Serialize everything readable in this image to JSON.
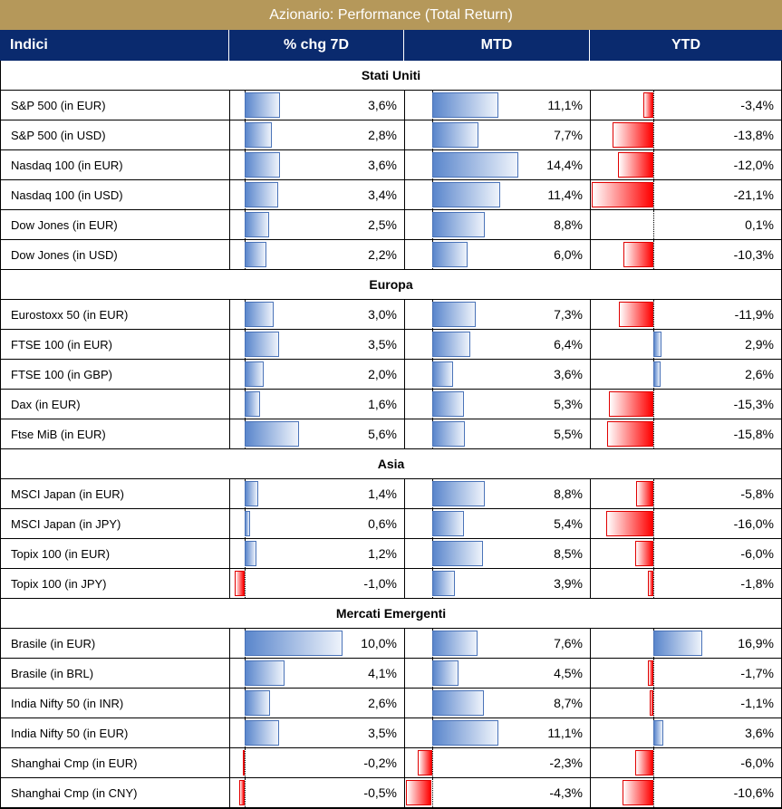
{
  "title": "Azionario: Performance (Total Return)",
  "headers": {
    "name": "Indici",
    "chg7d": "% chg 7D",
    "mtd": "MTD",
    "ytd": "YTD"
  },
  "colors": {
    "title_bg": "#b5985a",
    "header_bg": "#0a2a6e",
    "positive_bar": "#5a86cc",
    "negative_bar": "#ff0000"
  },
  "scales": {
    "chg7d": {
      "min": -1.0,
      "max": 10.0
    },
    "mtd": {
      "min": -4.3,
      "max": 14.4
    },
    "ytd": {
      "min": -21.1,
      "max": 16.9
    }
  },
  "sections": [
    {
      "title": "Stati Uniti",
      "rows": [
        {
          "name": "S&P 500 (in EUR)",
          "chg7d": 3.6,
          "mtd": 11.1,
          "ytd": -3.4,
          "chg7d_label": "3,6%",
          "mtd_label": "11,1%",
          "ytd_label": "-3,4%"
        },
        {
          "name": "S&P 500 (in USD)",
          "chg7d": 2.8,
          "mtd": 7.7,
          "ytd": -13.8,
          "chg7d_label": "2,8%",
          "mtd_label": "7,7%",
          "ytd_label": "-13,8%"
        },
        {
          "name": "Nasdaq 100 (in EUR)",
          "chg7d": 3.6,
          "mtd": 14.4,
          "ytd": -12.0,
          "chg7d_label": "3,6%",
          "mtd_label": "14,4%",
          "ytd_label": "-12,0%"
        },
        {
          "name": "Nasdaq 100 (in USD)",
          "chg7d": 3.4,
          "mtd": 11.4,
          "ytd": -21.1,
          "chg7d_label": "3,4%",
          "mtd_label": "11,4%",
          "ytd_label": "-21,1%"
        },
        {
          "name": "Dow Jones (in EUR)",
          "chg7d": 2.5,
          "mtd": 8.8,
          "ytd": 0.1,
          "chg7d_label": "2,5%",
          "mtd_label": "8,8%",
          "ytd_label": "0,1%"
        },
        {
          "name": "Dow Jones (in USD)",
          "chg7d": 2.2,
          "mtd": 6.0,
          "ytd": -10.3,
          "chg7d_label": "2,2%",
          "mtd_label": "6,0%",
          "ytd_label": "-10,3%"
        }
      ]
    },
    {
      "title": "Europa",
      "rows": [
        {
          "name": "Eurostoxx 50 (in EUR)",
          "chg7d": 3.0,
          "mtd": 7.3,
          "ytd": -11.9,
          "chg7d_label": "3,0%",
          "mtd_label": "7,3%",
          "ytd_label": "-11,9%"
        },
        {
          "name": "FTSE 100 (in EUR)",
          "chg7d": 3.5,
          "mtd": 6.4,
          "ytd": 2.9,
          "chg7d_label": "3,5%",
          "mtd_label": "6,4%",
          "ytd_label": "2,9%"
        },
        {
          "name": "FTSE 100 (in GBP)",
          "chg7d": 2.0,
          "mtd": 3.6,
          "ytd": 2.6,
          "chg7d_label": "2,0%",
          "mtd_label": "3,6%",
          "ytd_label": "2,6%"
        },
        {
          "name": "Dax (in EUR)",
          "chg7d": 1.6,
          "mtd": 5.3,
          "ytd": -15.3,
          "chg7d_label": "1,6%",
          "mtd_label": "5,3%",
          "ytd_label": "-15,3%"
        },
        {
          "name": "Ftse MiB (in EUR)",
          "chg7d": 5.6,
          "mtd": 5.5,
          "ytd": -15.8,
          "chg7d_label": "5,6%",
          "mtd_label": "5,5%",
          "ytd_label": "-15,8%"
        }
      ]
    },
    {
      "title": "Asia",
      "rows": [
        {
          "name": "MSCI Japan (in EUR)",
          "chg7d": 1.4,
          "mtd": 8.8,
          "ytd": -5.8,
          "chg7d_label": "1,4%",
          "mtd_label": "8,8%",
          "ytd_label": "-5,8%"
        },
        {
          "name": "MSCI Japan (in JPY)",
          "chg7d": 0.6,
          "mtd": 5.4,
          "ytd": -16.0,
          "chg7d_label": "0,6%",
          "mtd_label": "5,4%",
          "ytd_label": "-16,0%"
        },
        {
          "name": "Topix 100 (in EUR)",
          "chg7d": 1.2,
          "mtd": 8.5,
          "ytd": -6.0,
          "chg7d_label": "1,2%",
          "mtd_label": "8,5%",
          "ytd_label": "-6,0%"
        },
        {
          "name": "Topix 100 (in JPY)",
          "chg7d": -1.0,
          "mtd": 3.9,
          "ytd": -1.8,
          "chg7d_label": "-1,0%",
          "mtd_label": "3,9%",
          "ytd_label": "-1,8%"
        }
      ]
    },
    {
      "title": "Mercati Emergenti",
      "rows": [
        {
          "name": "Brasile (in EUR)",
          "chg7d": 10.0,
          "mtd": 7.6,
          "ytd": 16.9,
          "chg7d_label": "10,0%",
          "mtd_label": "7,6%",
          "ytd_label": "16,9%"
        },
        {
          "name": "Brasile (in BRL)",
          "chg7d": 4.1,
          "mtd": 4.5,
          "ytd": -1.7,
          "chg7d_label": "4,1%",
          "mtd_label": "4,5%",
          "ytd_label": "-1,7%"
        },
        {
          "name": "India Nifty 50 (in INR)",
          "chg7d": 2.6,
          "mtd": 8.7,
          "ytd": -1.1,
          "chg7d_label": "2,6%",
          "mtd_label": "8,7%",
          "ytd_label": "-1,1%"
        },
        {
          "name": "India Nifty 50 (in EUR)",
          "chg7d": 3.5,
          "mtd": 11.1,
          "ytd": 3.6,
          "chg7d_label": "3,5%",
          "mtd_label": "11,1%",
          "ytd_label": "3,6%"
        },
        {
          "name": "Shanghai Cmp (in EUR)",
          "chg7d": -0.2,
          "mtd": -2.3,
          "ytd": -6.0,
          "chg7d_label": "-0,2%",
          "mtd_label": "-2,3%",
          "ytd_label": "-6,0%"
        },
        {
          "name": "Shanghai Cmp (in CNY)",
          "chg7d": -0.5,
          "mtd": -4.3,
          "ytd": -10.6,
          "chg7d_label": "-0,5%",
          "mtd_label": "-4,3%",
          "ytd_label": "-10,6%"
        }
      ]
    }
  ]
}
